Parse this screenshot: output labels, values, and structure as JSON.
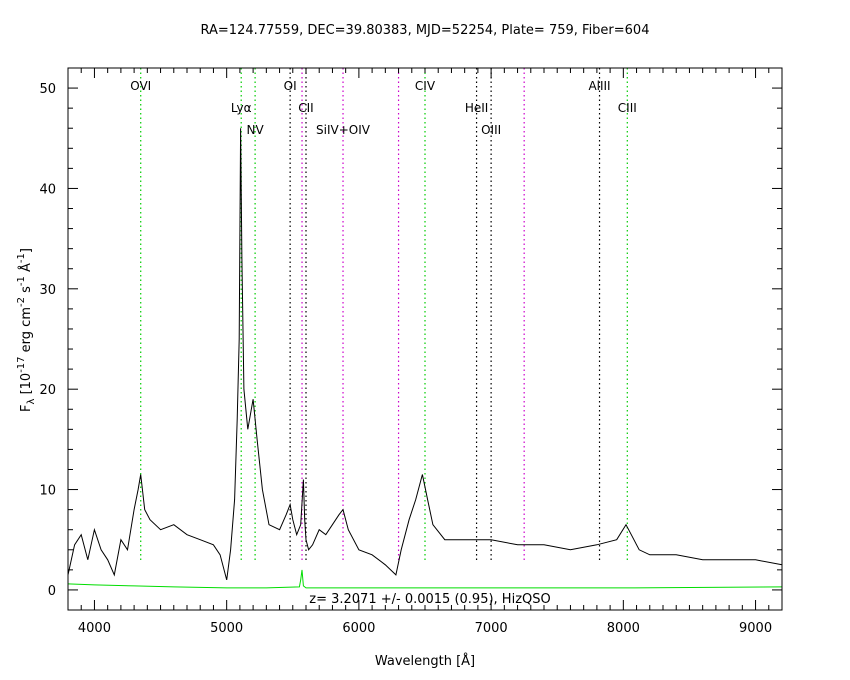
{
  "chart_data": {
    "type": "line",
    "title": "RA=124.77559, DEC=39.80383, MJD=52254, Plate= 759, Fiber=604",
    "xlabel": "Wavelength [Å]",
    "ylabel": {
      "main": "F",
      "sub": "λ",
      "part1": " [10",
      "exp1": "-17",
      "part2": " erg cm",
      "exp2": "-2",
      "part3": " s",
      "exp3": "-1",
      "part4": " Å",
      "exp4": "-1",
      "part5": "]"
    },
    "xlim": [
      3800,
      9200
    ],
    "ylim": [
      -2,
      52
    ],
    "xticks": [
      4000,
      5000,
      6000,
      7000,
      8000,
      9000
    ],
    "yticks": [
      0,
      10,
      20,
      30,
      40,
      50
    ],
    "annotation": "z= 3.2071 +/- 0.0015 (0.95), HizQSO",
    "colors": {
      "spectrum": "#000000",
      "error": "#00dd00",
      "green_line": "#00cc00",
      "magenta_line": "#cc00cc",
      "black_line": "#000000"
    },
    "line_markers": [
      {
        "label": "OVI",
        "x": 4350,
        "color": "green",
        "label_row": 0
      },
      {
        "label": "Lyα",
        "x": 5110,
        "color": "green",
        "label_row": 1
      },
      {
        "label": "NV",
        "x": 5215,
        "color": "green",
        "label_row": 2
      },
      {
        "label": "OI",
        "x": 5480,
        "color": "black",
        "label_row": 0
      },
      {
        "label": "CII",
        "x": 5600,
        "color": "black",
        "label_row": 1
      },
      {
        "label": "",
        "x": 5570,
        "color": "magenta",
        "label_row": 0
      },
      {
        "label": "SiIV+OIV",
        "x": 5880,
        "color": "magenta",
        "label_row": 2
      },
      {
        "label": "",
        "x": 6300,
        "color": "magenta",
        "label_row": 0
      },
      {
        "label": "CIV",
        "x": 6500,
        "color": "green",
        "label_row": 0
      },
      {
        "label": "HeII",
        "x": 6890,
        "color": "black",
        "label_row": 1
      },
      {
        "label": "OIII",
        "x": 7000,
        "color": "black",
        "label_row": 2
      },
      {
        "label": "",
        "x": 7250,
        "color": "magenta",
        "label_row": 0
      },
      {
        "label": "AlIII",
        "x": 7820,
        "color": "black",
        "label_row": 0
      },
      {
        "label": "CIII",
        "x": 8030,
        "color": "green",
        "label_row": 1
      }
    ],
    "series": [
      {
        "kind": "spectrum",
        "x": [
          3800,
          3850,
          3900,
          3950,
          4000,
          4050,
          4100,
          4150,
          4200,
          4250,
          4300,
          4330,
          4350,
          4380,
          4420,
          4500,
          4600,
          4700,
          4800,
          4900,
          4950,
          5000,
          5030,
          5060,
          5080,
          5095,
          5105,
          5115,
          5130,
          5160,
          5200,
          5230,
          5270,
          5320,
          5400,
          5450,
          5480,
          5500,
          5530,
          5560,
          5580,
          5590,
          5600,
          5620,
          5650,
          5700,
          5750,
          5800,
          5850,
          5880,
          5920,
          6000,
          6100,
          6200,
          6280,
          6320,
          6380,
          6430,
          6480,
          6520,
          6560,
          6650,
          6800,
          7000,
          7200,
          7400,
          7600,
          7800,
          7950,
          8020,
          8060,
          8120,
          8200,
          8400,
          8600,
          8800,
          9000,
          9200
        ],
        "y": [
          1.5,
          4.5,
          5.5,
          3,
          6,
          4,
          3,
          1.5,
          5,
          4,
          8,
          10,
          11.5,
          8,
          7,
          6,
          6.5,
          5.5,
          5,
          4.5,
          3.5,
          1,
          4,
          9,
          17,
          25,
          46,
          33,
          20,
          16,
          19,
          15,
          10,
          6.5,
          6,
          7.5,
          8.5,
          7,
          5.5,
          6.5,
          11,
          7,
          5,
          4,
          4.5,
          6,
          5.5,
          6.5,
          7.5,
          8,
          6,
          4,
          3.5,
          2.5,
          1.5,
          4,
          7,
          9,
          11.5,
          9,
          6.5,
          5,
          5,
          5,
          4.5,
          4.5,
          4,
          4.5,
          5,
          6.5,
          5.5,
          4,
          3.5,
          3.5,
          3,
          3,
          3,
          2.5
        ]
      },
      {
        "kind": "error",
        "x": [
          3800,
          4000,
          4300,
          4600,
          5000,
          5300,
          5550,
          5560,
          5570,
          5580,
          5600,
          5900,
          6300,
          7000,
          8000,
          9200
        ],
        "y": [
          0.6,
          0.5,
          0.4,
          0.3,
          0.2,
          0.2,
          0.3,
          1.0,
          2.0,
          0.4,
          0.2,
          0.2,
          0.2,
          0.2,
          0.2,
          0.3
        ]
      }
    ]
  }
}
